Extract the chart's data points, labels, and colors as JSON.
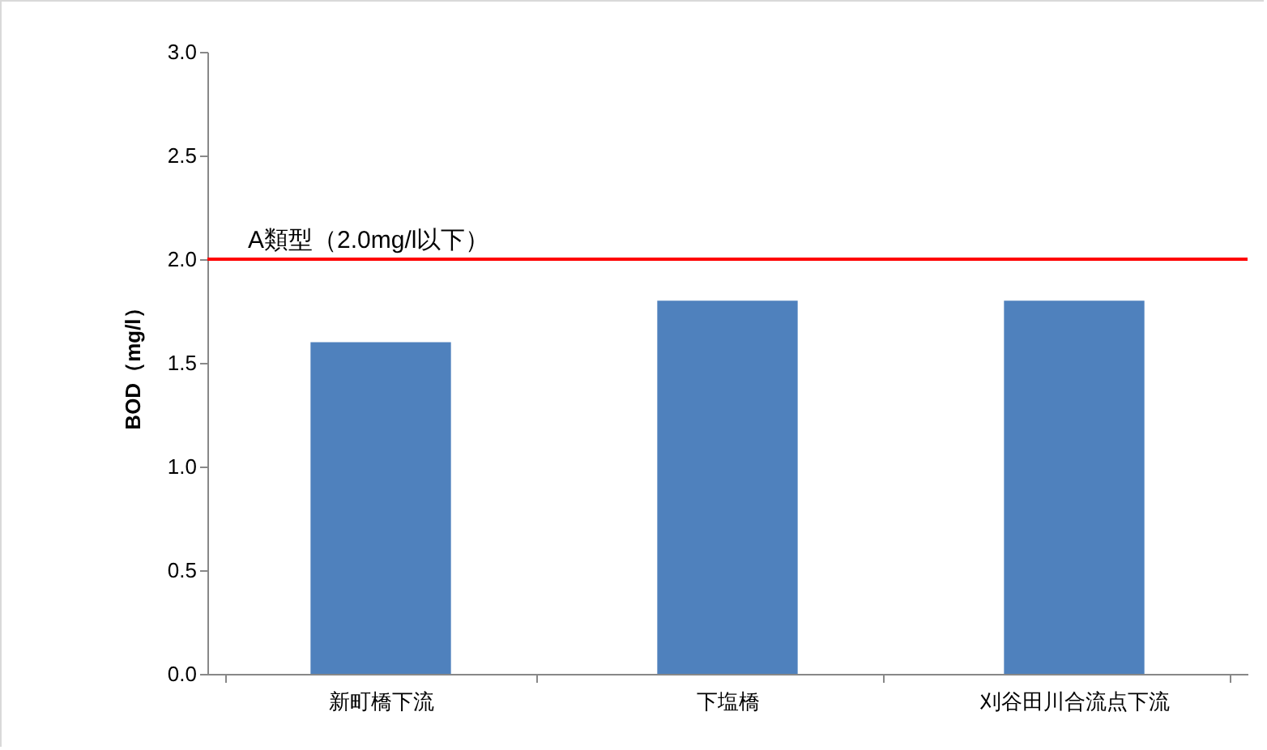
{
  "chart_data": {
    "type": "bar",
    "ylabel": "BOD（mg/l）",
    "categories": [
      "新町橋下流",
      "下塩橋",
      "刈谷田川合流点下流"
    ],
    "values": [
      1.6,
      1.8,
      1.8
    ],
    "color": "#4f81bd",
    "ylim": [
      0,
      3
    ],
    "yticks": [
      {
        "value": 0,
        "label": "0.0"
      },
      {
        "value": 0.5,
        "label": "0.5"
      },
      {
        "value": 1,
        "label": "1.0"
      },
      {
        "value": 1.5,
        "label": "1.5"
      },
      {
        "value": 2,
        "label": "2.0"
      },
      {
        "value": 2.5,
        "label": "2.5"
      },
      {
        "value": 3,
        "label": "3.0"
      }
    ],
    "grid": false,
    "ref_lines": [
      {
        "axis": "y",
        "value": 2,
        "label": "A類型（2.0mg/l以下）",
        "color": "#ff0000"
      }
    ]
  }
}
